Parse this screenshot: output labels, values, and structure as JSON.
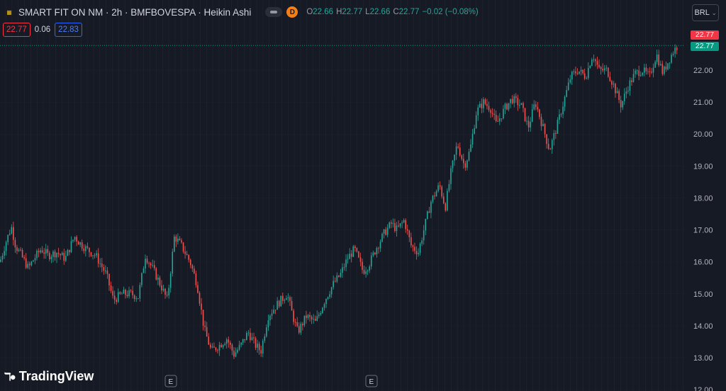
{
  "header": {
    "symbol_title": "SMART FIT ON NM · 2h · BMFBOVESPA · Heikin Ashi",
    "delay_badge": "D",
    "ohlc": {
      "o_label": "O",
      "o_value": "22.66",
      "h_label": "H",
      "h_value": "22.77",
      "l_label": "L",
      "l_value": "22.66",
      "c_label": "C",
      "c_value": "22.77",
      "change": "−0.02 (−0.08%)"
    },
    "bid": "22.77",
    "spread": "0.06",
    "ask": "22.83",
    "currency": "BRL",
    "icons": {
      "favicon": "exchange-logo-icon",
      "toggle": "visibility-toggle-icon",
      "chevron": "chevron-down-icon"
    }
  },
  "branding": {
    "name": "TradingView"
  },
  "price_labels": {
    "high_tag": "22.77",
    "last_tag": "22.77"
  },
  "colors": {
    "up": "#26a69a",
    "down": "#ef5350",
    "background": "#161a25",
    "grid": "#2a2e39",
    "last_line": "#089981"
  },
  "chart_data": {
    "type": "candlestick",
    "chart_style": "Heikin Ashi",
    "interval": "2h",
    "y_axis": {
      "position": "right",
      "ticks": [
        "12.00",
        "13.00",
        "14.00",
        "15.00",
        "16.00",
        "17.00",
        "18.00",
        "19.00",
        "20.00",
        "21.00",
        "22.00"
      ],
      "ylim": [
        12.0,
        22.9
      ]
    },
    "grid": true,
    "last_price": 22.77,
    "event_markers": [
      "E",
      "E"
    ],
    "price_path": [
      [
        0,
        16.0
      ],
      [
        8,
        16.6
      ],
      [
        16,
        17.1
      ],
      [
        22,
        16.5
      ],
      [
        30,
        16.2
      ],
      [
        40,
        15.8
      ],
      [
        48,
        16.1
      ],
      [
        58,
        16.4
      ],
      [
        68,
        16.2
      ],
      [
        80,
        16.3
      ],
      [
        92,
        16.1
      ],
      [
        105,
        16.8
      ],
      [
        112,
        16.6
      ],
      [
        122,
        16.4
      ],
      [
        135,
        16.2
      ],
      [
        150,
        15.6
      ],
      [
        160,
        14.8
      ],
      [
        172,
        15.0
      ],
      [
        185,
        15.0
      ],
      [
        195,
        14.9
      ],
      [
        205,
        16.2
      ],
      [
        215,
        15.8
      ],
      [
        226,
        15.3
      ],
      [
        236,
        14.8
      ],
      [
        246,
        16.8
      ],
      [
        256,
        16.5
      ],
      [
        268,
        16.0
      ],
      [
        278,
        15.3
      ],
      [
        288,
        13.9
      ],
      [
        298,
        13.2
      ],
      [
        310,
        13.4
      ],
      [
        320,
        13.6
      ],
      [
        330,
        13.1
      ],
      [
        340,
        13.4
      ],
      [
        350,
        13.8
      ],
      [
        360,
        13.4
      ],
      [
        368,
        13.2
      ],
      [
        378,
        14.3
      ],
      [
        392,
        14.7
      ],
      [
        405,
        15.0
      ],
      [
        413,
        14.3
      ],
      [
        420,
        13.8
      ],
      [
        432,
        14.3
      ],
      [
        445,
        14.1
      ],
      [
        458,
        14.8
      ],
      [
        470,
        15.3
      ],
      [
        480,
        15.6
      ],
      [
        490,
        16.1
      ],
      [
        500,
        16.4
      ],
      [
        512,
        15.7
      ],
      [
        520,
        15.9
      ],
      [
        530,
        16.4
      ],
      [
        542,
        16.9
      ],
      [
        552,
        17.2
      ],
      [
        560,
        17.0
      ],
      [
        570,
        17.3
      ],
      [
        580,
        16.5
      ],
      [
        590,
        16.3
      ],
      [
        600,
        17.2
      ],
      [
        608,
        17.9
      ],
      [
        620,
        18.4
      ],
      [
        628,
        17.7
      ],
      [
        636,
        18.8
      ],
      [
        645,
        19.7
      ],
      [
        655,
        19.0
      ],
      [
        663,
        19.5
      ],
      [
        672,
        20.7
      ],
      [
        682,
        21.0
      ],
      [
        692,
        20.8
      ],
      [
        700,
        20.3
      ],
      [
        712,
        20.8
      ],
      [
        722,
        21.1
      ],
      [
        735,
        20.9
      ],
      [
        745,
        20.2
      ],
      [
        755,
        21.0
      ],
      [
        766,
        20.2
      ],
      [
        775,
        19.5
      ],
      [
        785,
        20.2
      ],
      [
        795,
        21.0
      ],
      [
        805,
        21.8
      ],
      [
        815,
        22.0
      ],
      [
        826,
        21.8
      ],
      [
        836,
        22.5
      ],
      [
        845,
        22.0
      ],
      [
        856,
        22.0
      ],
      [
        866,
        21.5
      ],
      [
        876,
        20.9
      ],
      [
        886,
        21.5
      ],
      [
        896,
        21.9
      ],
      [
        906,
        22.0
      ],
      [
        916,
        21.8
      ],
      [
        926,
        22.5
      ],
      [
        935,
        21.9
      ],
      [
        943,
        22.3
      ],
      [
        950,
        22.6
      ],
      [
        956,
        22.77
      ]
    ]
  }
}
